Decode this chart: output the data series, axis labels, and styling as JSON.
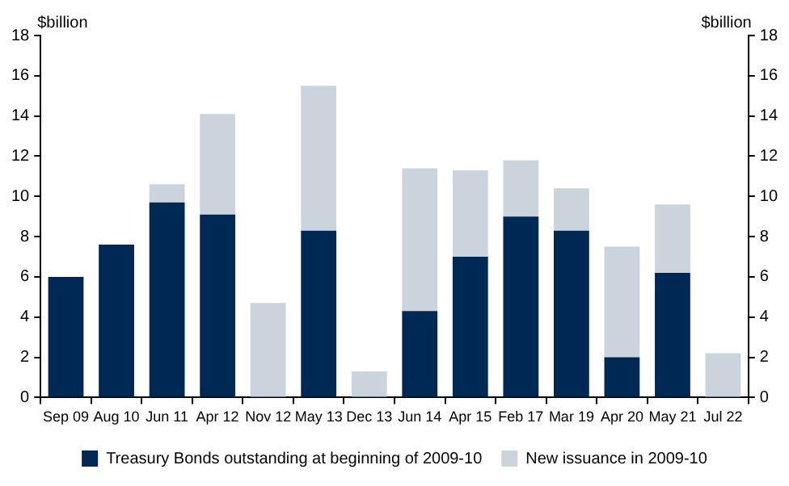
{
  "chart_data": {
    "type": "bar",
    "stacked": true,
    "ylabel": "$billion",
    "y2label": "$billion",
    "categories": [
      "Sep 09",
      "Aug 10",
      "Jun 11",
      "Apr 12",
      "Nov 12",
      "May 13",
      "Dec 13",
      "Jun 14",
      "Apr 15",
      "Feb 17",
      "Mar 19",
      "Apr 20",
      "May 21",
      "Jul 22"
    ],
    "series": [
      {
        "name": "Treasury Bonds outstanding at beginning of 2009-10",
        "color": "#002855",
        "values": [
          6.0,
          7.6,
          9.7,
          9.1,
          0,
          8.3,
          0,
          4.3,
          7.0,
          9.0,
          8.3,
          2.0,
          6.2,
          0
        ]
      },
      {
        "name": "New issuance in 2009-10",
        "color": "#cbd3dc",
        "values": [
          0,
          0,
          0.9,
          5.0,
          4.7,
          7.2,
          1.3,
          7.1,
          4.3,
          2.8,
          2.1,
          5.5,
          3.4,
          2.2
        ]
      }
    ],
    "ylim": [
      0,
      18
    ],
    "yticks": [
      0,
      2,
      4,
      6,
      8,
      10,
      12,
      14,
      16,
      18
    ],
    "y2lim": [
      0,
      18
    ],
    "y2ticks": [
      0,
      2,
      4,
      6,
      8,
      10,
      12,
      14,
      16,
      18
    ],
    "grid": false,
    "legend": "bottom"
  }
}
